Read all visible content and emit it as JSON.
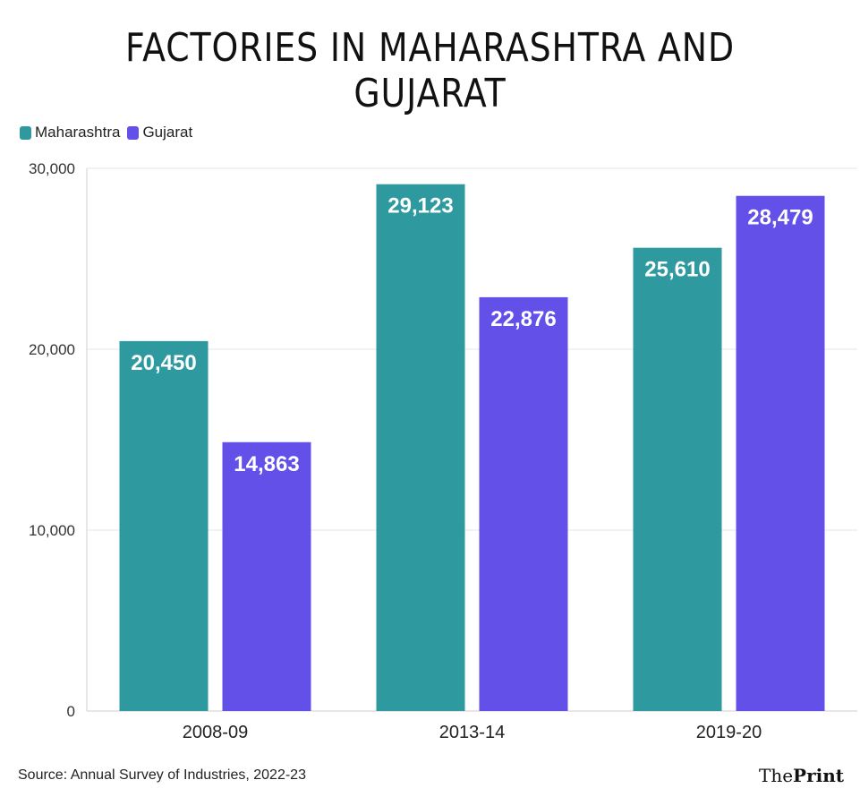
{
  "title": "FACTORIES IN MAHARASHTRA AND GUJARAT",
  "footer": {
    "source": "Source: Annual Survey of Industries, 2022-23",
    "logo_the": "The",
    "logo_print": "Print"
  },
  "colors": {
    "maharashtra": "#2e9aa0",
    "gujarat": "#6350e8",
    "grid": "#e6e6e6",
    "axis": "#cfcfcf"
  },
  "chart_data": {
    "type": "bar",
    "title": "FACTORIES IN MAHARASHTRA AND GUJARAT",
    "categories": [
      "2008-09",
      "2013-14",
      "2019-20"
    ],
    "series": [
      {
        "name": "Maharashtra",
        "values": [
          20450,
          29123,
          25610
        ],
        "labels": [
          "20,450",
          "29,123",
          "25,610"
        ]
      },
      {
        "name": "Gujarat",
        "values": [
          14863,
          22876,
          28479
        ],
        "labels": [
          "14,863",
          "22,876",
          "28,479"
        ]
      }
    ],
    "yticks": [
      0,
      10000,
      20000,
      30000
    ],
    "ytick_labels": [
      "0",
      "10,000",
      "20,000",
      "30,000"
    ],
    "ylim": [
      0,
      30000
    ],
    "grid": true,
    "legend_position": "top-left",
    "xlabel": "",
    "ylabel": ""
  }
}
